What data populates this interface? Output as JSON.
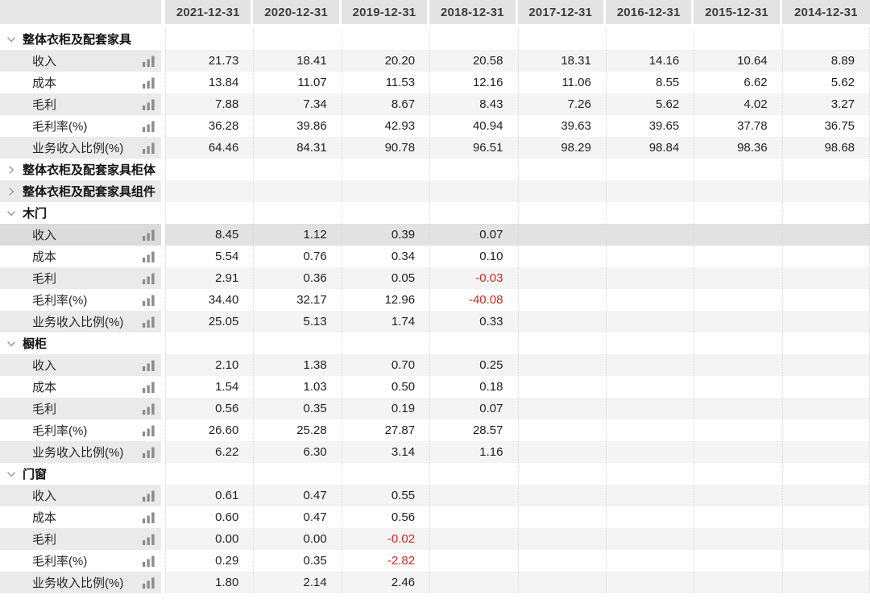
{
  "header": {
    "corner_label": "",
    "columns": [
      "2021-12-31",
      "2020-12-31",
      "2019-12-31",
      "2018-12-31",
      "2017-12-31",
      "2016-12-31",
      "2015-12-31",
      "2014-12-31"
    ]
  },
  "groups": [
    {
      "label": "整体衣柜及配套家具",
      "state": "expanded",
      "rows": [
        {
          "label": "收入",
          "values": [
            "21.73",
            "18.41",
            "20.20",
            "20.58",
            "18.31",
            "14.16",
            "10.64",
            "8.89"
          ]
        },
        {
          "label": "成本",
          "values": [
            "13.84",
            "11.07",
            "11.53",
            "12.16",
            "11.06",
            "8.55",
            "6.62",
            "5.62"
          ]
        },
        {
          "label": "毛利",
          "values": [
            "7.88",
            "7.34",
            "8.67",
            "8.43",
            "7.26",
            "5.62",
            "4.02",
            "3.27"
          ]
        },
        {
          "label": "毛利率(%)",
          "values": [
            "36.28",
            "39.86",
            "42.93",
            "40.94",
            "39.63",
            "39.65",
            "37.78",
            "36.75"
          ]
        },
        {
          "label": "业务收入比例(%)",
          "values": [
            "64.46",
            "84.31",
            "90.78",
            "96.51",
            "98.29",
            "98.84",
            "98.36",
            "98.68"
          ]
        }
      ]
    },
    {
      "label": "整体衣柜及配套家具柜体",
      "state": "collapsed",
      "rows": []
    },
    {
      "label": "整体衣柜及配套家具组件",
      "state": "collapsed",
      "rows": []
    },
    {
      "label": "木门",
      "state": "expanded",
      "rows": [
        {
          "label": "收入",
          "highlighted": true,
          "values": [
            "8.45",
            "1.12",
            "0.39",
            "0.07",
            "",
            "",
            "",
            ""
          ]
        },
        {
          "label": "成本",
          "values": [
            "5.54",
            "0.76",
            "0.34",
            "0.10",
            "",
            "",
            "",
            ""
          ]
        },
        {
          "label": "毛利",
          "values": [
            "2.91",
            "0.36",
            "0.05",
            "-0.03",
            "",
            "",
            "",
            ""
          ]
        },
        {
          "label": "毛利率(%)",
          "values": [
            "34.40",
            "32.17",
            "12.96",
            "-40.08",
            "",
            "",
            "",
            ""
          ]
        },
        {
          "label": "业务收入比例(%)",
          "values": [
            "25.05",
            "5.13",
            "1.74",
            "0.33",
            "",
            "",
            "",
            ""
          ]
        }
      ]
    },
    {
      "label": "橱柜",
      "state": "expanded",
      "rows": [
        {
          "label": "收入",
          "values": [
            "2.10",
            "1.38",
            "0.70",
            "0.25",
            "",
            "",
            "",
            ""
          ]
        },
        {
          "label": "成本",
          "values": [
            "1.54",
            "1.03",
            "0.50",
            "0.18",
            "",
            "",
            "",
            ""
          ]
        },
        {
          "label": "毛利",
          "values": [
            "0.56",
            "0.35",
            "0.19",
            "0.07",
            "",
            "",
            "",
            ""
          ]
        },
        {
          "label": "毛利率(%)",
          "values": [
            "26.60",
            "25.28",
            "27.87",
            "28.57",
            "",
            "",
            "",
            ""
          ]
        },
        {
          "label": "业务收入比例(%)",
          "values": [
            "6.22",
            "6.30",
            "3.14",
            "1.16",
            "",
            "",
            "",
            ""
          ]
        }
      ]
    },
    {
      "label": "门窗",
      "state": "expanded",
      "rows": [
        {
          "label": "收入",
          "values": [
            "0.61",
            "0.47",
            "0.55",
            "",
            "",
            "",
            "",
            ""
          ]
        },
        {
          "label": "成本",
          "values": [
            "0.60",
            "0.47",
            "0.56",
            "",
            "",
            "",
            "",
            ""
          ]
        },
        {
          "label": "毛利",
          "values": [
            "0.00",
            "0.00",
            "-0.02",
            "",
            "",
            "",
            "",
            ""
          ]
        },
        {
          "label": "毛利率(%)",
          "values": [
            "0.29",
            "0.35",
            "-2.82",
            "",
            "",
            "",
            "",
            ""
          ]
        },
        {
          "label": "业务收入比例(%)",
          "values": [
            "1.80",
            "2.14",
            "2.46",
            "",
            "",
            "",
            "",
            ""
          ]
        }
      ]
    }
  ],
  "icons": {
    "expanded_chevron": "chevron-down",
    "collapsed_chevron": "chevron-right",
    "metric_icon": "bar-chart"
  },
  "colors": {
    "header_bg": "#e3e3e3",
    "corner_bg": "#e8e8e8",
    "header_text": "#3d3d3d",
    "stripe_label_bg": "#eaeaea",
    "stripe_data_bg": "#f4f4f4",
    "highlight_label_bg": "#dbdbdb",
    "highlight_data_bg": "#e2e2e2",
    "negative_text": "#d9251c",
    "body_text": "#1f1f1f",
    "icon_gray": "#8a8a8a",
    "chevron_gray": "#9a9a9a",
    "separator": "#d8d8d8"
  }
}
